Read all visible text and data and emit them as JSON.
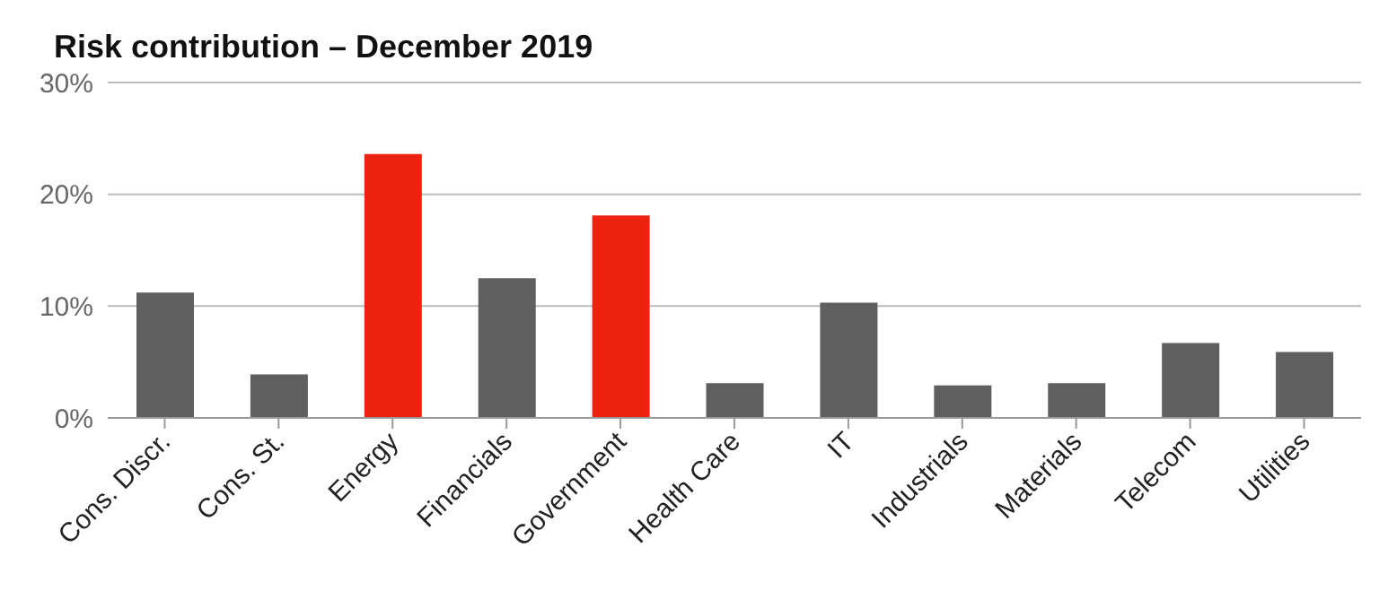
{
  "chart_data": {
    "type": "bar",
    "title": "Risk contribution – December 2019",
    "categories": [
      "Cons. Discr.",
      "Cons. St.",
      "Energy",
      "Financials",
      "Government",
      "Health Care",
      "IT",
      "Industrials",
      "Materials",
      "Telecom",
      "Utilities"
    ],
    "values": [
      11.2,
      3.9,
      23.6,
      12.5,
      18.1,
      3.1,
      10.3,
      2.9,
      3.1,
      6.7,
      5.9
    ],
    "colors": [
      "#5f5f5f",
      "#5f5f5f",
      "#ee2211",
      "#5f5f5f",
      "#ee2211",
      "#5f5f5f",
      "#5f5f5f",
      "#5f5f5f",
      "#5f5f5f",
      "#5f5f5f",
      "#5f5f5f"
    ],
    "ylim": [
      0,
      30
    ],
    "yticks": [
      {
        "value": 0,
        "label": "0%"
      },
      {
        "value": 10,
        "label": "10%"
      },
      {
        "value": 20,
        "label": "20%"
      },
      {
        "value": 30,
        "label": "30%"
      }
    ],
    "grid": "y"
  }
}
